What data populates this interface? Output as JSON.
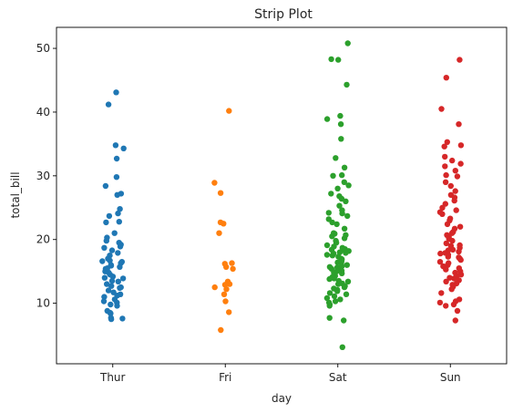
{
  "chart_data": {
    "type": "scatter",
    "title": "Strip Plot",
    "xlabel": "day",
    "ylabel": "total_bill",
    "categories": [
      "Thur",
      "Fri",
      "Sat",
      "Sun"
    ],
    "yticks": [
      10,
      20,
      30,
      40,
      50
    ],
    "ylim": [
      0.5,
      53.3
    ],
    "grid": false,
    "series": [
      {
        "color": "#1f77b4",
        "values": [
          43.1,
          41.2,
          34.8,
          34.3,
          32.7,
          29.8,
          28.4,
          27.2,
          27.0,
          24.8,
          24.1,
          23.7,
          22.8,
          22.7,
          21.0,
          20.3,
          19.8,
          19.5,
          19.2,
          18.9,
          18.7,
          18.3,
          17.9,
          17.5,
          17.0,
          16.7,
          16.5,
          16.3,
          16.0,
          15.9,
          15.7,
          15.4,
          15.0,
          14.8,
          14.5,
          14.2,
          13.9,
          13.5,
          13.4,
          13.0,
          12.7,
          12.5,
          12.4,
          12.0,
          11.7,
          11.4,
          11.2,
          11.0,
          10.6,
          10.3,
          10.1,
          9.8,
          9.6,
          8.8,
          8.5,
          8.4,
          7.7,
          7.6,
          7.5,
          16.6,
          15.5,
          14.0
        ]
      },
      {
        "color": "#ff7f0e",
        "values": [
          40.2,
          28.9,
          27.3,
          22.7,
          22.5,
          21.0,
          16.3,
          16.2,
          15.7,
          15.4,
          13.4,
          13.0,
          12.5,
          12.2,
          11.4,
          10.3,
          8.6,
          5.8,
          12.9
        ]
      },
      {
        "color": "#2ca02c",
        "values": [
          50.8,
          48.3,
          48.2,
          44.3,
          39.4,
          38.9,
          38.1,
          35.8,
          32.8,
          31.3,
          30.1,
          30.0,
          29.0,
          28.5,
          28.0,
          27.2,
          26.8,
          26.4,
          26.0,
          25.3,
          24.6,
          24.2,
          23.7,
          23.2,
          22.7,
          22.4,
          21.7,
          21.0,
          20.7,
          20.5,
          20.2,
          19.8,
          19.5,
          19.1,
          18.9,
          18.7,
          18.5,
          18.3,
          18.2,
          18.0,
          17.9,
          17.8,
          17.6,
          17.5,
          17.3,
          17.0,
          16.9,
          16.6,
          16.4,
          16.3,
          16.0,
          15.8,
          15.7,
          15.5,
          15.4,
          15.1,
          15.0,
          14.8,
          14.7,
          14.5,
          14.3,
          14.1,
          13.9,
          13.8,
          13.5,
          13.4,
          13.1,
          13.0,
          12.7,
          12.5,
          12.3,
          12.1,
          11.9,
          11.6,
          11.4,
          11.1,
          10.8,
          10.6,
          10.3,
          10.1,
          9.8,
          9.6,
          7.7,
          7.3,
          3.1,
          24.1,
          20.9,
          18.4,
          15.6
        ]
      },
      {
        "color": "#d62728",
        "values": [
          48.2,
          45.4,
          40.5,
          38.1,
          35.3,
          34.8,
          34.6,
          33.0,
          32.4,
          31.9,
          31.5,
          30.8,
          30.1,
          29.9,
          29.0,
          28.4,
          27.6,
          27.0,
          26.6,
          26.1,
          25.6,
          25.0,
          24.6,
          24.3,
          24.0,
          23.3,
          23.0,
          22.4,
          21.7,
          21.2,
          21.0,
          20.7,
          20.4,
          20.1,
          19.8,
          19.4,
          19.1,
          18.7,
          18.4,
          18.3,
          18.1,
          17.9,
          17.8,
          17.6,
          17.3,
          17.0,
          16.8,
          16.5,
          16.3,
          16.0,
          15.8,
          15.5,
          15.3,
          15.0,
          14.8,
          14.5,
          14.3,
          14.0,
          13.9,
          13.6,
          13.4,
          13.1,
          12.9,
          12.6,
          12.2,
          11.6,
          10.6,
          10.3,
          10.1,
          9.8,
          9.6,
          8.8,
          7.3,
          22.0,
          19.0,
          17.2
        ]
      }
    ]
  }
}
